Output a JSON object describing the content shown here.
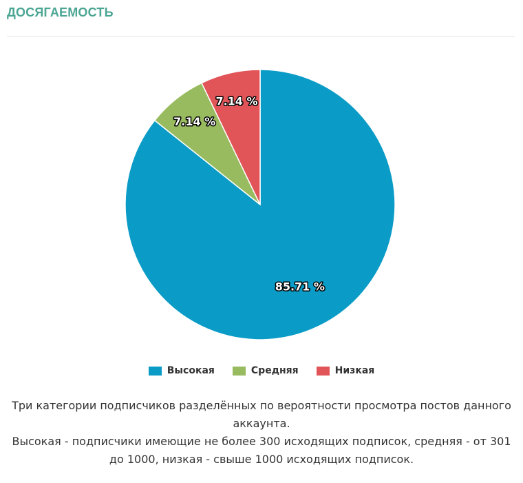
{
  "header": {
    "title": "Досягаемость"
  },
  "chart_data": {
    "type": "pie",
    "categories": [
      "Высокая",
      "Средняя",
      "Низкая"
    ],
    "values": [
      85.71,
      7.14,
      7.14
    ],
    "value_labels": [
      "85.71 %",
      "7.14 %",
      "7.14 %"
    ],
    "colors": [
      "#0a9cc6",
      "#99bb5f",
      "#e15559"
    ],
    "start_angle": "12 o'clock",
    "direction": "clockwise",
    "legend_position": "bottom",
    "title": "",
    "xlabel": "",
    "ylabel": ""
  },
  "legend": {
    "items": [
      {
        "label": "Высокая",
        "color": "#0a9cc6"
      },
      {
        "label": "Средняя",
        "color": "#99bb5f"
      },
      {
        "label": "Низкая",
        "color": "#e15559"
      }
    ]
  },
  "description": {
    "line1": "Три категории подписчиков разделённых по вероятности просмотра постов данного аккаунта.",
    "line2": "Высокая - подписчики имеющие не более 300 исходящих подписок, средняя - от 301 до 1000, низкая - свыше 1000 исходящих подписок."
  }
}
